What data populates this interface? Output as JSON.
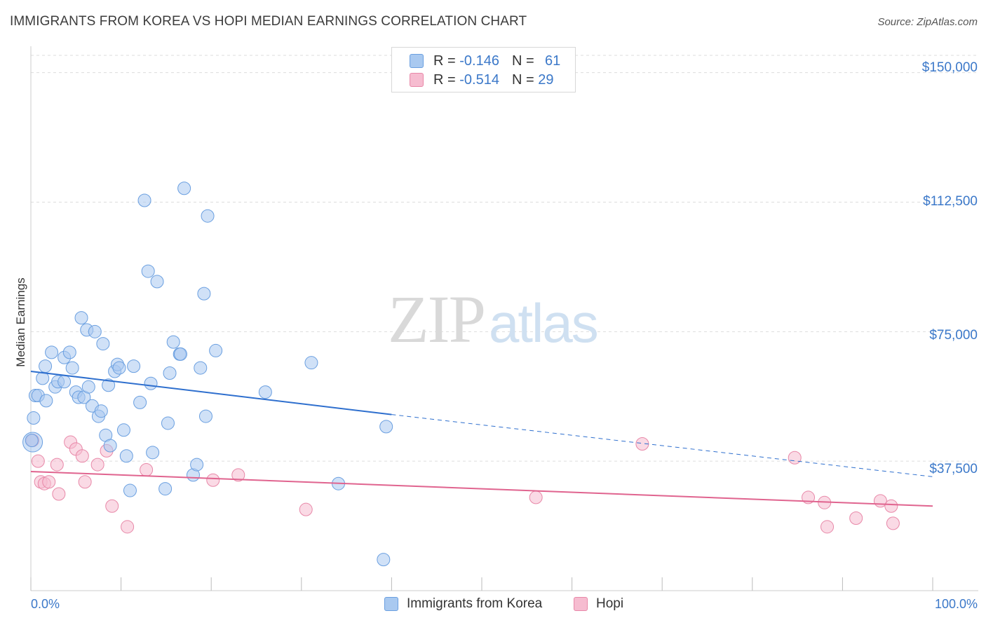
{
  "header": {
    "title": "IMMIGRANTS FROM KOREA VS HOPI MEDIAN EARNINGS CORRELATION CHART",
    "source": "Source: ZipAtlas.com"
  },
  "legend": {
    "rows": [
      {
        "r_label": "R =",
        "r_value": "-0.146",
        "n_label": "N =",
        "n_value": "61",
        "color": "#a9c9f0"
      },
      {
        "r_label": "R =",
        "r_value": "-0.514",
        "n_label": "N =",
        "n_value": "29",
        "color": "#f6bcd0"
      }
    ]
  },
  "bottom_legend": {
    "korea": "Immigrants from Korea",
    "hopi": "Hopi"
  },
  "watermark": {
    "zip": "ZIP",
    "atlas": "atlas"
  },
  "colors": {
    "korea_fill": "#a9c9f0",
    "korea_stroke": "#6a9fe0",
    "korea_line": "#2e6fce",
    "hopi_fill": "#f6bcd0",
    "hopi_stroke": "#e888a8",
    "hopi_line": "#e0648f",
    "tick_label": "#3b78c9",
    "grid": "#dddddd"
  },
  "chart_data": {
    "type": "scatter",
    "title": "IMMIGRANTS FROM KOREA VS HOPI MEDIAN EARNINGS CORRELATION CHART",
    "xlabel": "",
    "ylabel": "Median Earnings",
    "xlim": [
      0,
      100
    ],
    "ylim": [
      0,
      155000
    ],
    "x_tick_labels": [
      "0.0%",
      "100.0%"
    ],
    "y_ticks": [
      37500,
      75000,
      112500,
      150000
    ],
    "y_tick_labels": [
      "$37,500",
      "$75,000",
      "$112,500",
      "$150,000"
    ],
    "grid": "horizontal dashed",
    "legend_position": "top-center",
    "series": [
      {
        "name": "Immigrants from Korea",
        "r": -0.146,
        "n": 61,
        "trend": {
          "x0": 0,
          "y0": 63500,
          "x1_solid": 40,
          "y1_solid": 51000,
          "x1": 100,
          "y1": 33000
        },
        "points": [
          [
            0.2,
            43000
          ],
          [
            0.3,
            50000
          ],
          [
            0.5,
            56500
          ],
          [
            0.8,
            56500
          ],
          [
            1.3,
            61500
          ],
          [
            1.6,
            65000
          ],
          [
            1.7,
            55000
          ],
          [
            2.3,
            69000
          ],
          [
            2.7,
            59000
          ],
          [
            3.0,
            60500
          ],
          [
            3.7,
            60500
          ],
          [
            3.7,
            67500
          ],
          [
            4.3,
            69000
          ],
          [
            4.6,
            64500
          ],
          [
            5.0,
            57500
          ],
          [
            5.3,
            56000
          ],
          [
            5.6,
            79000
          ],
          [
            5.9,
            56000
          ],
          [
            6.2,
            75500
          ],
          [
            6.4,
            59000
          ],
          [
            6.8,
            53500
          ],
          [
            7.1,
            75000
          ],
          [
            7.5,
            50500
          ],
          [
            7.8,
            52000
          ],
          [
            8.0,
            71500
          ],
          [
            8.3,
            45000
          ],
          [
            8.6,
            59500
          ],
          [
            8.8,
            42000
          ],
          [
            9.3,
            63500
          ],
          [
            9.6,
            65500
          ],
          [
            9.8,
            64500
          ],
          [
            10.3,
            46500
          ],
          [
            10.6,
            39000
          ],
          [
            11.0,
            29000
          ],
          [
            11.4,
            65000
          ],
          [
            12.1,
            54500
          ],
          [
            12.6,
            113000
          ],
          [
            13.0,
            92500
          ],
          [
            13.3,
            60000
          ],
          [
            13.5,
            40000
          ],
          [
            14.0,
            89500
          ],
          [
            14.9,
            29500
          ],
          [
            15.2,
            48500
          ],
          [
            15.4,
            63000
          ],
          [
            15.8,
            72000
          ],
          [
            16.5,
            68500
          ],
          [
            16.6,
            68500
          ],
          [
            17.0,
            116500
          ],
          [
            18.0,
            33500
          ],
          [
            18.4,
            36500
          ],
          [
            18.8,
            64500
          ],
          [
            19.2,
            86000
          ],
          [
            19.4,
            50500
          ],
          [
            19.6,
            108500
          ],
          [
            20.5,
            69500
          ],
          [
            26.0,
            57500
          ],
          [
            31.1,
            66000
          ],
          [
            34.1,
            31000
          ],
          [
            39.1,
            9000
          ],
          [
            39.4,
            47500
          ],
          [
            0.1,
            43500
          ]
        ]
      },
      {
        "name": "Hopi",
        "r": -0.514,
        "n": 29,
        "trend": {
          "x0": 0,
          "y0": 34500,
          "x1": 100,
          "y1": 24500
        },
        "points": [
          [
            0.2,
            43500
          ],
          [
            0.8,
            37500
          ],
          [
            1.1,
            31500
          ],
          [
            1.5,
            31000
          ],
          [
            2.0,
            31500
          ],
          [
            2.9,
            36500
          ],
          [
            3.1,
            28000
          ],
          [
            4.4,
            43000
          ],
          [
            5.0,
            41000
          ],
          [
            5.7,
            39000
          ],
          [
            6.0,
            31500
          ],
          [
            7.4,
            36500
          ],
          [
            8.4,
            40500
          ],
          [
            9.0,
            24500
          ],
          [
            10.7,
            18500
          ],
          [
            12.8,
            35000
          ],
          [
            20.2,
            32000
          ],
          [
            23.0,
            33500
          ],
          [
            30.5,
            23500
          ],
          [
            56.0,
            27000
          ],
          [
            67.8,
            42500
          ],
          [
            84.7,
            38500
          ],
          [
            86.2,
            27000
          ],
          [
            88.0,
            25500
          ],
          [
            88.3,
            18500
          ],
          [
            91.5,
            21000
          ],
          [
            94.2,
            26000
          ],
          [
            95.4,
            24500
          ],
          [
            95.6,
            19500
          ]
        ]
      }
    ]
  }
}
